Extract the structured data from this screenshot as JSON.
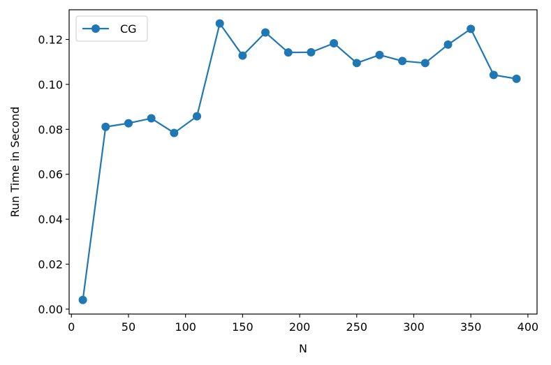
{
  "chart_data": {
    "type": "line",
    "title": "",
    "xlabel": "N",
    "ylabel": "Run Time in Second",
    "xlim": [
      -2,
      408
    ],
    "ylim": [
      -0.0022,
      0.1332
    ],
    "xticks": [
      0,
      50,
      100,
      150,
      200,
      250,
      300,
      350,
      400
    ],
    "xtick_labels": [
      "0",
      "50",
      "100",
      "150",
      "200",
      "250",
      "300",
      "350",
      "400"
    ],
    "yticks": [
      0.0,
      0.02,
      0.04,
      0.06,
      0.08,
      0.1,
      0.12
    ],
    "ytick_labels": [
      "0.00",
      "0.02",
      "0.04",
      "0.06",
      "0.08",
      "0.10",
      "0.12"
    ],
    "grid": false,
    "legend": {
      "position": "upper-left",
      "entries": [
        "CG"
      ]
    },
    "color": "#1f77b4",
    "marker": "circle",
    "series": [
      {
        "name": "CG",
        "x": [
          10,
          30,
          50,
          70,
          90,
          110,
          130,
          150,
          170,
          190,
          210,
          230,
          250,
          270,
          290,
          310,
          330,
          350,
          370,
          390
        ],
        "y": [
          0.0041,
          0.0811,
          0.0827,
          0.0849,
          0.0784,
          0.0858,
          0.1271,
          0.1128,
          0.1231,
          0.1142,
          0.1143,
          0.1183,
          0.1095,
          0.1131,
          0.1104,
          0.1095,
          0.1177,
          0.1247,
          0.1042,
          0.1025
        ]
      }
    ]
  }
}
